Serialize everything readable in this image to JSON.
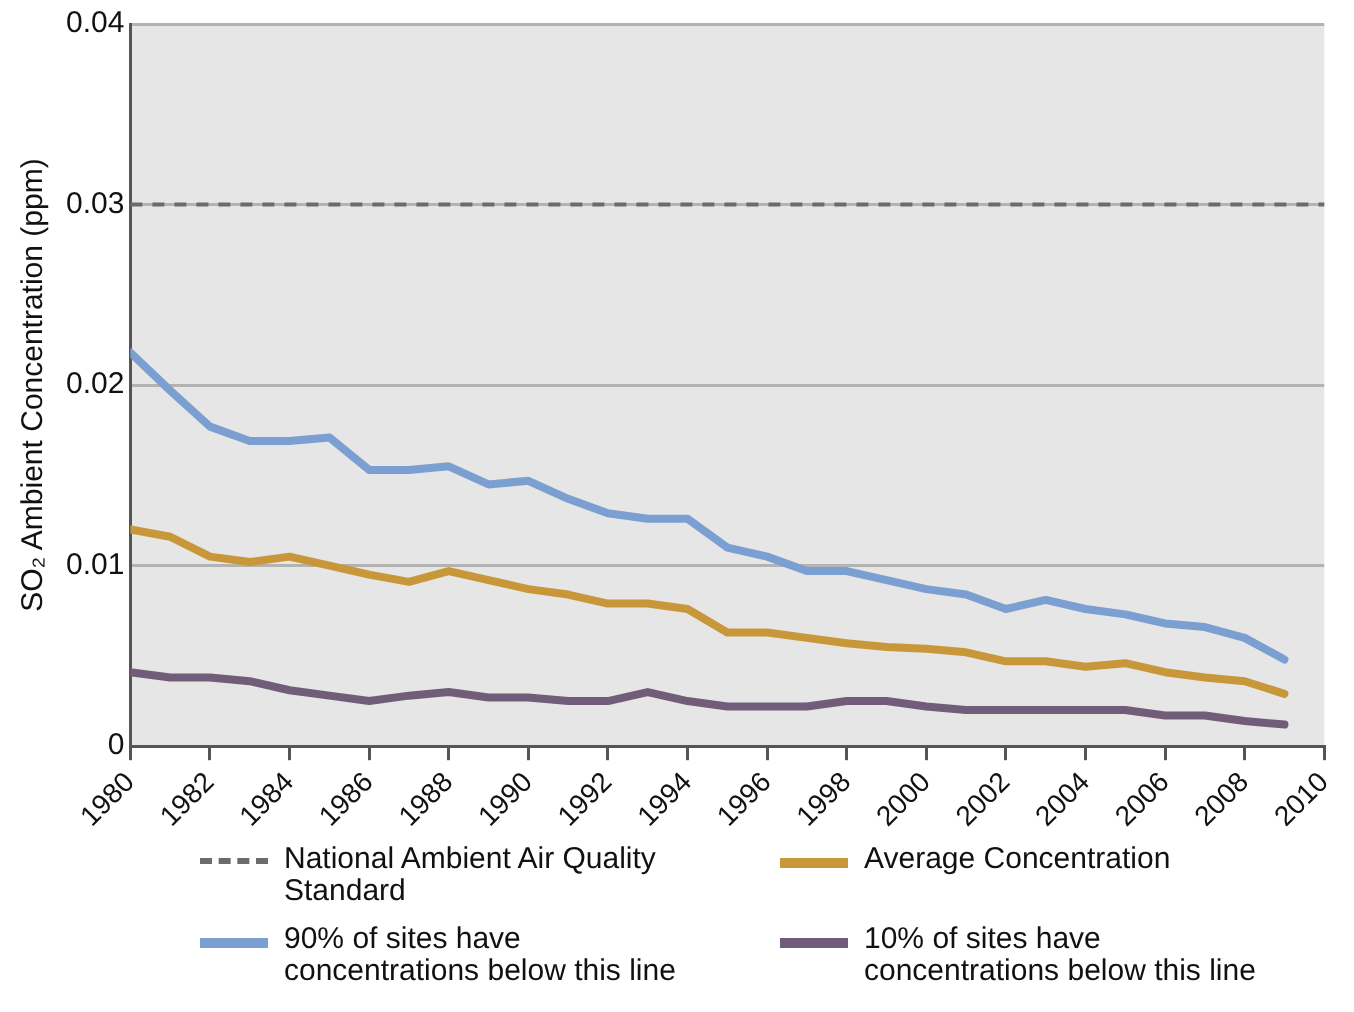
{
  "chart_data": {
    "type": "line",
    "ylabel": "SO₂ Ambient Concentration (ppm)",
    "x": [
      1980,
      1981,
      1982,
      1983,
      1984,
      1985,
      1986,
      1987,
      1988,
      1989,
      1990,
      1991,
      1992,
      1993,
      1994,
      1995,
      1996,
      1997,
      1998,
      1999,
      2000,
      2001,
      2002,
      2003,
      2004,
      2005,
      2006,
      2007,
      2008,
      2009
    ],
    "series": [
      {
        "name": "Average Concentration",
        "color": "#c8973a",
        "values": [
          0.012,
          0.0116,
          0.0105,
          0.0102,
          0.0105,
          0.01,
          0.0095,
          0.0091,
          0.0097,
          0.0092,
          0.0087,
          0.0084,
          0.0079,
          0.0079,
          0.0076,
          0.0063,
          0.0063,
          0.006,
          0.0057,
          0.0055,
          0.0054,
          0.0052,
          0.0047,
          0.0047,
          0.0044,
          0.0046,
          0.0041,
          0.0038,
          0.0036,
          0.0029
        ]
      },
      {
        "name": "90% of sites have concentrations below this line",
        "color": "#7a9fd0",
        "values": [
          0.0218,
          0.0197,
          0.0177,
          0.0169,
          0.0169,
          0.0171,
          0.0153,
          0.0153,
          0.0155,
          0.0145,
          0.0147,
          0.0137,
          0.0129,
          0.0126,
          0.0126,
          0.011,
          0.0105,
          0.0097,
          0.0097,
          0.0092,
          0.0087,
          0.0084,
          0.0076,
          0.0081,
          0.0076,
          0.0073,
          0.0068,
          0.0066,
          0.006,
          0.0048
        ]
      },
      {
        "name": "10% of sites have concentrations below this line",
        "color": "#715c7a",
        "values": [
          0.0041,
          0.0038,
          0.0038,
          0.0036,
          0.0031,
          0.0028,
          0.0025,
          0.0028,
          0.003,
          0.0027,
          0.0027,
          0.0025,
          0.0025,
          0.003,
          0.0025,
          0.0022,
          0.0022,
          0.0022,
          0.0025,
          0.0025,
          0.0022,
          0.002,
          0.002,
          0.002,
          0.002,
          0.002,
          0.0017,
          0.0017,
          0.0014,
          0.0012
        ]
      }
    ],
    "ref_lines": [
      {
        "axis": "y",
        "value": 0.03,
        "label": "National Ambient Air Quality Standard",
        "color": "#6b6b6b",
        "line_style": "dashed"
      }
    ],
    "xlim": [
      1980,
      2010
    ],
    "xticks": [
      1980,
      1982,
      1984,
      1986,
      1988,
      1990,
      1992,
      1994,
      1996,
      1998,
      2000,
      2002,
      2004,
      2006,
      2008,
      2010
    ],
    "ylim": [
      0,
      0.04
    ],
    "yticks": [
      0,
      0.01,
      0.02,
      0.03,
      0.04
    ],
    "grid": "y",
    "legend": "bottom",
    "marker": "none",
    "line_style": "solid"
  }
}
